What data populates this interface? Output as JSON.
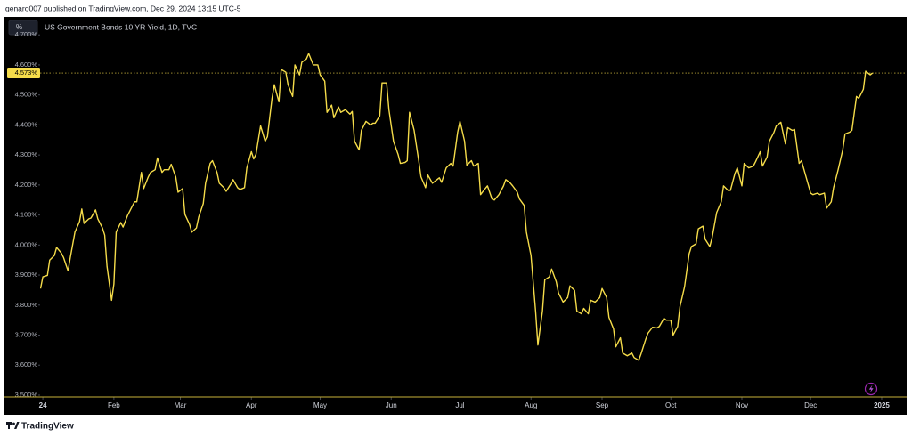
{
  "header": {
    "text": "genaro007 published on TradingView.com, Dec 29, 2024 13:15 UTC-5"
  },
  "footer": {
    "brand": "TradingView"
  },
  "chart_data": {
    "type": "line",
    "title": "US Government Bonds 10 YR Yield, 1D, TVC",
    "unit_button": "%",
    "color": "#f5dc4a",
    "last_price": {
      "value": 4.573,
      "label": "4.573%"
    },
    "x": [
      -1,
      0,
      2,
      3,
      5,
      6,
      8,
      9,
      11,
      12,
      14,
      16,
      17,
      18,
      20,
      21,
      23,
      24,
      26,
      27,
      28,
      30,
      31,
      32,
      34,
      35,
      37,
      39,
      40,
      41,
      43,
      44,
      46,
      47,
      49,
      50,
      52,
      53,
      55,
      56,
      58,
      59,
      61,
      62,
      64,
      65,
      67,
      68,
      70,
      71,
      73,
      74,
      76,
      77,
      79,
      80,
      82,
      83,
      85,
      86,
      88,
      89,
      91,
      92,
      93,
      95,
      97,
      98,
      100,
      101,
      103,
      104,
      106,
      107,
      109,
      110,
      112,
      113,
      115,
      116,
      118,
      120,
      121,
      123,
      124,
      126,
      127,
      129,
      130,
      132,
      134,
      135,
      136,
      138,
      139,
      141,
      143,
      144,
      145,
      147,
      148,
      150,
      151,
      153,
      155,
      156,
      158,
      159,
      160,
      162,
      164,
      165,
      167,
      168,
      170,
      171,
      173,
      174,
      176,
      178,
      179,
      181,
      182,
      184,
      185,
      187,
      188,
      190,
      191,
      193,
      194,
      196,
      197,
      199,
      201,
      202,
      204,
      205,
      207,
      208,
      210,
      211,
      213,
      215,
      216,
      218,
      219,
      221,
      222,
      224,
      225,
      227,
      229,
      230,
      232,
      233,
      235,
      236,
      238,
      239,
      241,
      243,
      244,
      246,
      247,
      249,
      250,
      252,
      253,
      255,
      257,
      258,
      260,
      261,
      263,
      264,
      266,
      268,
      269,
      271,
      272,
      274,
      275,
      277,
      278,
      280,
      282,
      283,
      285,
      286,
      288,
      289,
      291,
      292,
      294,
      296,
      297,
      299,
      300,
      302,
      303,
      305,
      306,
      308,
      310,
      311,
      313,
      314,
      316,
      317,
      319,
      320,
      322,
      324,
      325,
      327,
      328,
      330,
      331,
      333,
      335,
      336,
      338,
      339,
      341,
      342,
      344,
      345,
      347,
      349,
      350,
      352,
      353,
      355,
      356,
      358,
      359,
      361,
      362
    ],
    "values": [
      3.855,
      3.894,
      3.899,
      3.95,
      3.965,
      3.992,
      3.974,
      3.959,
      3.914,
      3.959,
      4.043,
      4.078,
      4.12,
      4.072,
      4.087,
      4.09,
      4.117,
      4.087,
      4.057,
      4.033,
      3.929,
      3.816,
      3.87,
      4.043,
      4.075,
      4.06,
      4.099,
      4.129,
      4.144,
      4.144,
      4.242,
      4.188,
      4.227,
      4.242,
      4.251,
      4.29,
      4.242,
      4.251,
      4.251,
      4.269,
      4.227,
      4.176,
      4.188,
      4.102,
      4.069,
      4.043,
      4.057,
      4.093,
      4.138,
      4.206,
      4.272,
      4.281,
      4.242,
      4.206,
      4.191,
      4.179,
      4.203,
      4.218,
      4.191,
      4.185,
      4.191,
      4.257,
      4.311,
      4.287,
      4.302,
      4.397,
      4.346,
      4.361,
      4.489,
      4.534,
      4.477,
      4.585,
      4.576,
      4.534,
      4.495,
      4.6,
      4.567,
      4.609,
      4.62,
      4.638,
      4.6,
      4.6,
      4.567,
      4.546,
      4.442,
      4.466,
      4.424,
      4.46,
      4.442,
      4.451,
      4.436,
      4.445,
      4.346,
      4.317,
      4.382,
      4.412,
      4.4,
      4.406,
      4.406,
      4.43,
      4.54,
      4.54,
      4.451,
      4.346,
      4.302,
      4.272,
      4.275,
      4.281,
      4.442,
      4.382,
      4.281,
      4.227,
      4.191,
      4.233,
      4.206,
      4.212,
      4.224,
      4.209,
      4.257,
      4.272,
      4.263,
      4.376,
      4.412,
      4.346,
      4.266,
      4.281,
      4.263,
      4.272,
      4.168,
      4.188,
      4.197,
      4.153,
      4.15,
      4.168,
      4.197,
      4.218,
      4.206,
      4.197,
      4.176,
      4.153,
      4.132,
      4.043,
      3.965,
      3.78,
      3.667,
      3.78,
      3.884,
      3.894,
      3.92,
      3.878,
      3.84,
      3.81,
      3.825,
      3.864,
      3.849,
      3.78,
      3.771,
      3.789,
      3.771,
      3.816,
      3.81,
      3.825,
      3.855,
      3.825,
      3.759,
      3.721,
      3.661,
      3.691,
      3.64,
      3.631,
      3.64,
      3.625,
      3.616,
      3.637,
      3.685,
      3.706,
      3.726,
      3.724,
      3.729,
      3.756,
      3.75,
      3.75,
      3.7,
      3.729,
      3.795,
      3.861,
      3.971,
      3.995,
      4.004,
      4.054,
      4.063,
      4.019,
      3.995,
      4.024,
      4.108,
      4.144,
      4.197,
      4.182,
      4.182,
      4.239,
      4.257,
      4.197,
      4.272,
      4.257,
      4.263,
      4.278,
      4.311,
      4.263,
      4.293,
      4.346,
      4.376,
      4.397,
      4.409,
      4.337,
      4.391,
      4.382,
      4.385,
      4.272,
      4.281,
      4.227,
      4.173,
      4.168,
      4.173,
      4.168,
      4.173,
      4.123,
      4.144,
      4.191,
      4.251,
      4.317,
      4.37,
      4.376,
      4.382,
      4.495,
      4.489,
      4.519,
      4.579,
      4.567,
      4.573
    ],
    "xlim": [
      -1.2,
      376.5
    ],
    "ylim": [
      3.494,
      4.757
    ],
    "xticks": [
      {
        "value": 0,
        "label": "24"
      },
      {
        "value": 31,
        "label": "Feb"
      },
      {
        "value": 60,
        "label": "Mar"
      },
      {
        "value": 91,
        "label": "Apr"
      },
      {
        "value": 121,
        "label": "May"
      },
      {
        "value": 152,
        "label": "Jun"
      },
      {
        "value": 182,
        "label": "Jul"
      },
      {
        "value": 213,
        "label": "Aug"
      },
      {
        "value": 244,
        "label": "Sep"
      },
      {
        "value": 274,
        "label": "Oct"
      },
      {
        "value": 305,
        "label": "Nov"
      },
      {
        "value": 335,
        "label": "Dec"
      },
      {
        "value": 366,
        "label": "2025"
      }
    ],
    "yticks": [
      {
        "value": 3.5,
        "label": "3.500%"
      },
      {
        "value": 3.6,
        "label": "3.600%"
      },
      {
        "value": 3.7,
        "label": "3.700%"
      },
      {
        "value": 3.8,
        "label": "3.800%"
      },
      {
        "value": 3.9,
        "label": "3.900%"
      },
      {
        "value": 4.0,
        "label": "4.000%"
      },
      {
        "value": 4.1,
        "label": "4.100%"
      },
      {
        "value": 4.2,
        "label": "4.200%"
      },
      {
        "value": 4.3,
        "label": "4.300%"
      },
      {
        "value": 4.4,
        "label": "4.400%"
      },
      {
        "value": 4.5,
        "label": "4.500%"
      },
      {
        "value": 4.6,
        "label": "4.600%"
      },
      {
        "value": 4.7,
        "label": "4.700%"
      }
    ]
  }
}
